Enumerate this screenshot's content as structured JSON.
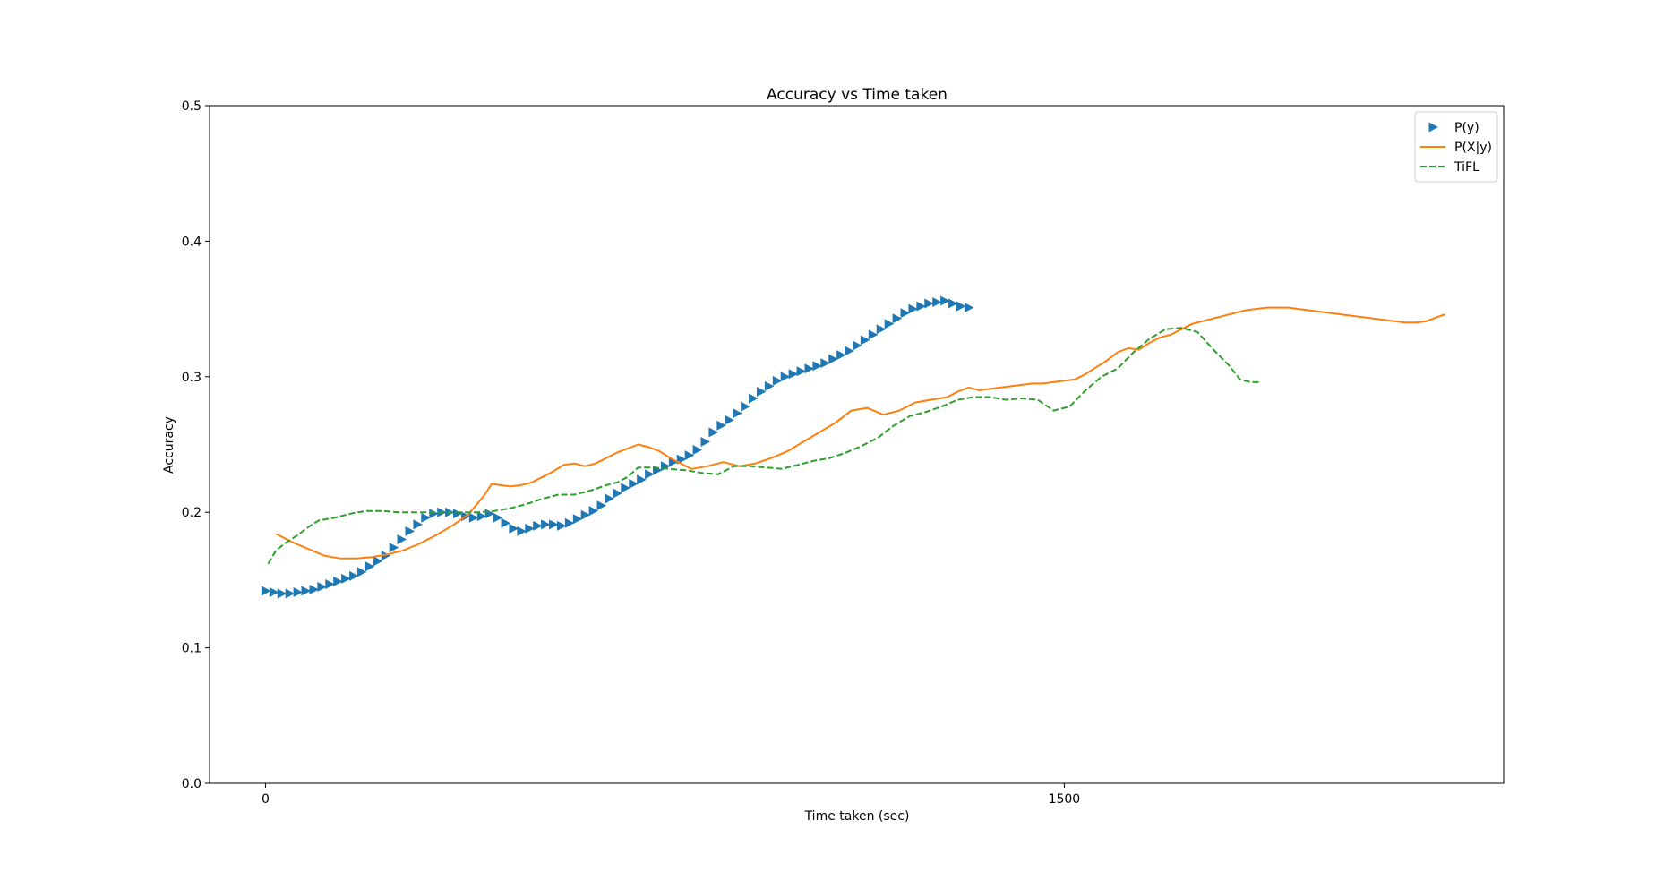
{
  "chart_data": {
    "type": "line",
    "title": "Accuracy vs Time taken",
    "xlabel": "Time taken (sec)",
    "ylabel": "Accuracy",
    "xlim": [
      -105,
      2325
    ],
    "ylim": [
      0,
      0.5
    ],
    "xticks": [
      0,
      1500
    ],
    "xtick_labels": [
      "0",
      "1500"
    ],
    "yticks": [
      0.0,
      0.1,
      0.2,
      0.3,
      0.4,
      0.5
    ],
    "ytick_labels": [
      "0.0",
      "0.1",
      "0.2",
      "0.3",
      "0.4",
      "0.5"
    ],
    "grid": false,
    "legend_position": "top-right",
    "series": [
      {
        "name": "P(y)",
        "style": "triangle-markers",
        "color": "#1f77b4",
        "x": [
          0,
          15,
          30,
          45,
          60,
          75,
          90,
          105,
          120,
          135,
          150,
          165,
          180,
          195,
          210,
          225,
          240,
          255,
          270,
          285,
          300,
          315,
          330,
          345,
          360,
          375,
          390,
          405,
          420,
          435,
          450,
          465,
          480,
          495,
          510,
          525,
          540,
          555,
          570,
          585,
          600,
          615,
          630,
          645,
          660,
          675,
          690,
          705,
          720,
          735,
          750,
          765,
          780,
          795,
          810,
          825,
          840,
          855,
          870,
          885,
          900,
          915,
          930,
          945,
          960,
          975,
          990,
          1005,
          1020,
          1035,
          1050,
          1065,
          1080,
          1095,
          1110,
          1125,
          1140,
          1155,
          1170,
          1185,
          1200,
          1215,
          1230,
          1245,
          1260,
          1275,
          1290,
          1305,
          1320
        ],
        "values": [
          0.142,
          0.141,
          0.14,
          0.14,
          0.141,
          0.142,
          0.143,
          0.145,
          0.147,
          0.149,
          0.151,
          0.153,
          0.156,
          0.16,
          0.164,
          0.168,
          0.174,
          0.18,
          0.186,
          0.191,
          0.196,
          0.199,
          0.2,
          0.2,
          0.199,
          0.197,
          0.196,
          0.197,
          0.199,
          0.196,
          0.192,
          0.188,
          0.186,
          0.188,
          0.19,
          0.191,
          0.191,
          0.19,
          0.192,
          0.195,
          0.198,
          0.201,
          0.205,
          0.21,
          0.214,
          0.218,
          0.221,
          0.224,
          0.228,
          0.231,
          0.234,
          0.237,
          0.239,
          0.242,
          0.246,
          0.252,
          0.259,
          0.264,
          0.268,
          0.273,
          0.278,
          0.284,
          0.289,
          0.293,
          0.297,
          0.3,
          0.302,
          0.304,
          0.306,
          0.308,
          0.31,
          0.313,
          0.316,
          0.319,
          0.323,
          0.327,
          0.331,
          0.335,
          0.339,
          0.343,
          0.347,
          0.35,
          0.352,
          0.354,
          0.355,
          0.356,
          0.354,
          0.352,
          0.351
        ]
      },
      {
        "name": "P(X|y)",
        "style": "solid",
        "color": "#ff7f0e",
        "x": [
          20,
          50,
          80,
          110,
          140,
          170,
          200,
          230,
          260,
          290,
          320,
          350,
          380,
          410,
          425,
          440,
          460,
          480,
          500,
          520,
          540,
          560,
          580,
          600,
          620,
          640,
          660,
          680,
          700,
          720,
          740,
          760,
          780,
          800,
          830,
          860,
          890,
          920,
          950,
          980,
          1010,
          1040,
          1070,
          1100,
          1130,
          1160,
          1190,
          1220,
          1250,
          1280,
          1300,
          1320,
          1340,
          1360,
          1380,
          1400,
          1420,
          1440,
          1460,
          1480,
          1500,
          1520,
          1540,
          1560,
          1580,
          1600,
          1620,
          1640,
          1660,
          1680,
          1700,
          1720,
          1740,
          1760,
          1780,
          1800,
          1820,
          1840,
          1860,
          1880,
          1900,
          1920,
          1940,
          1960,
          1980,
          2000,
          2020,
          2040,
          2060,
          2080,
          2100,
          2120,
          2140,
          2160,
          2180,
          2200,
          2215
        ],
        "values": [
          0.184,
          0.178,
          0.173,
          0.168,
          0.166,
          0.166,
          0.167,
          0.169,
          0.172,
          0.177,
          0.183,
          0.19,
          0.198,
          0.212,
          0.221,
          0.22,
          0.219,
          0.22,
          0.222,
          0.226,
          0.23,
          0.235,
          0.236,
          0.234,
          0.236,
          0.24,
          0.244,
          0.247,
          0.25,
          0.248,
          0.245,
          0.24,
          0.236,
          0.232,
          0.234,
          0.237,
          0.234,
          0.236,
          0.24,
          0.245,
          0.252,
          0.259,
          0.266,
          0.275,
          0.277,
          0.272,
          0.275,
          0.281,
          0.283,
          0.285,
          0.289,
          0.292,
          0.29,
          0.291,
          0.292,
          0.293,
          0.294,
          0.295,
          0.295,
          0.296,
          0.297,
          0.298,
          0.302,
          0.307,
          0.312,
          0.318,
          0.321,
          0.32,
          0.325,
          0.329,
          0.331,
          0.335,
          0.339,
          0.341,
          0.343,
          0.345,
          0.347,
          0.349,
          0.35,
          0.351,
          0.351,
          0.351,
          0.35,
          0.349,
          0.348,
          0.347,
          0.346,
          0.345,
          0.344,
          0.343,
          0.342,
          0.341,
          0.34,
          0.34,
          0.341,
          0.344,
          0.346
        ]
      },
      {
        "name": "TiFL",
        "style": "dashed",
        "color": "#2ca02c",
        "x": [
          5,
          20,
          40,
          60,
          80,
          100,
          130,
          160,
          190,
          220,
          250,
          280,
          310,
          340,
          370,
          400,
          430,
          460,
          490,
          520,
          550,
          580,
          610,
          640,
          660,
          680,
          700,
          730,
          760,
          790,
          820,
          850,
          880,
          910,
          940,
          970,
          1000,
          1030,
          1060,
          1090,
          1120,
          1150,
          1180,
          1210,
          1240,
          1270,
          1300,
          1330,
          1360,
          1390,
          1420,
          1450,
          1480,
          1510,
          1540,
          1570,
          1600,
          1630,
          1660,
          1690,
          1720,
          1750,
          1780,
          1810,
          1830,
          1850,
          1865
        ],
        "values": [
          0.162,
          0.172,
          0.178,
          0.183,
          0.189,
          0.194,
          0.196,
          0.199,
          0.201,
          0.201,
          0.2,
          0.2,
          0.2,
          0.2,
          0.2,
          0.2,
          0.201,
          0.203,
          0.206,
          0.21,
          0.213,
          0.213,
          0.216,
          0.22,
          0.222,
          0.226,
          0.233,
          0.233,
          0.232,
          0.231,
          0.229,
          0.228,
          0.234,
          0.234,
          0.233,
          0.232,
          0.235,
          0.238,
          0.24,
          0.244,
          0.249,
          0.255,
          0.264,
          0.271,
          0.274,
          0.278,
          0.283,
          0.285,
          0.285,
          0.283,
          0.284,
          0.283,
          0.275,
          0.278,
          0.29,
          0.3,
          0.306,
          0.318,
          0.328,
          0.335,
          0.336,
          0.333,
          0.32,
          0.308,
          0.298,
          0.296,
          0.296
        ]
      }
    ]
  }
}
